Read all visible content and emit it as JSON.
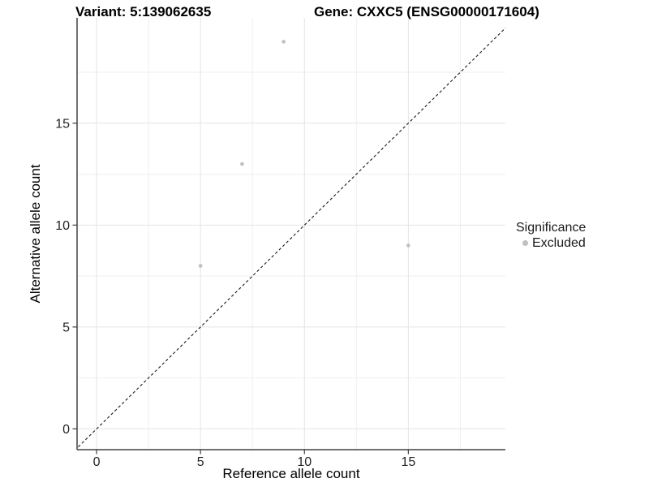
{
  "chart_data": {
    "type": "scatter",
    "variant_title": "Variant: 5:139062635",
    "gene_title": "Gene: CXXC5 (ENSG00000171604)",
    "xlabel": "Reference allele count",
    "ylabel": "Alternative allele count",
    "points": [
      {
        "x": 5,
        "y": 8,
        "significance": "Excluded"
      },
      {
        "x": 7,
        "y": 13,
        "significance": "Excluded"
      },
      {
        "x": 9,
        "y": 19,
        "significance": "Excluded"
      },
      {
        "x": 15,
        "y": 9,
        "significance": "Excluded"
      }
    ],
    "x_ticks": [
      0,
      5,
      10,
      15
    ],
    "y_ticks": [
      0,
      5,
      10,
      15
    ],
    "x_minor_breaks": [
      2.5,
      7.5,
      12.5,
      17.5
    ],
    "y_minor_breaks": [
      2.5,
      7.5,
      12.5,
      17.5
    ],
    "xlim": [
      -0.94,
      19.67
    ],
    "ylim": [
      -1.02,
      20.17
    ],
    "identity_line": {
      "slope": 1,
      "intercept": 0,
      "style": "dashed"
    },
    "grid": true,
    "legend": {
      "title": "Significance",
      "position": "right",
      "items": [
        {
          "label": "Excluded",
          "color": "#bfbfbf"
        }
      ]
    },
    "colors": {
      "point": "#bfbfbf",
      "grid_major": "#e4e4e4",
      "grid_minor": "#efefef",
      "axis_line": "#404040",
      "dashed_line": "#1a1a1a",
      "tick_text": "#262626",
      "title_text": "#000000"
    }
  }
}
